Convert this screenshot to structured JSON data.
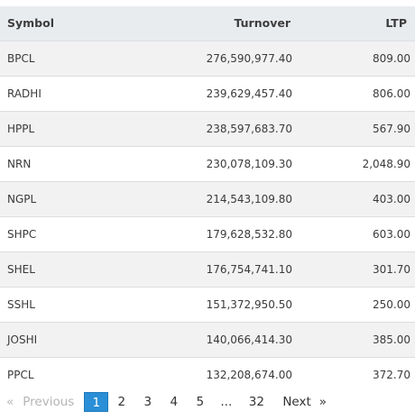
{
  "table": {
    "headers": {
      "symbol": "Symbol",
      "turnover": "Turnover",
      "ltp": "LTP"
    },
    "rows": [
      {
        "symbol": "BPCL",
        "turnover": "276,590,977.40",
        "ltp": "809.00"
      },
      {
        "symbol": "RADHI",
        "turnover": "239,629,457.40",
        "ltp": "806.00"
      },
      {
        "symbol": "HPPL",
        "turnover": "238,597,683.70",
        "ltp": "567.90"
      },
      {
        "symbol": "NRN",
        "turnover": "230,078,109.30",
        "ltp": "2,048.90"
      },
      {
        "symbol": "NGPL",
        "turnover": "214,543,109.80",
        "ltp": "403.00"
      },
      {
        "symbol": "SHPC",
        "turnover": "179,628,532.80",
        "ltp": "603.00"
      },
      {
        "symbol": "SHEL",
        "turnover": "176,754,741.10",
        "ltp": "301.70"
      },
      {
        "symbol": "SSHL",
        "turnover": "151,372,950.50",
        "ltp": "250.00"
      },
      {
        "symbol": "JOSHI",
        "turnover": "140,066,414.30",
        "ltp": "385.00"
      },
      {
        "symbol": "PPCL",
        "turnover": "132,208,674.00",
        "ltp": "372.70"
      }
    ]
  },
  "pagination": {
    "prev_chevron": "«",
    "previous_label": "Previous",
    "pages": [
      "1",
      "2",
      "3",
      "4",
      "5",
      "...",
      "32"
    ],
    "active_page": "1",
    "next_label": "Next",
    "next_chevron": "»",
    "active_color": "#2a8fd6",
    "disabled_color": "#b5b5b5"
  }
}
